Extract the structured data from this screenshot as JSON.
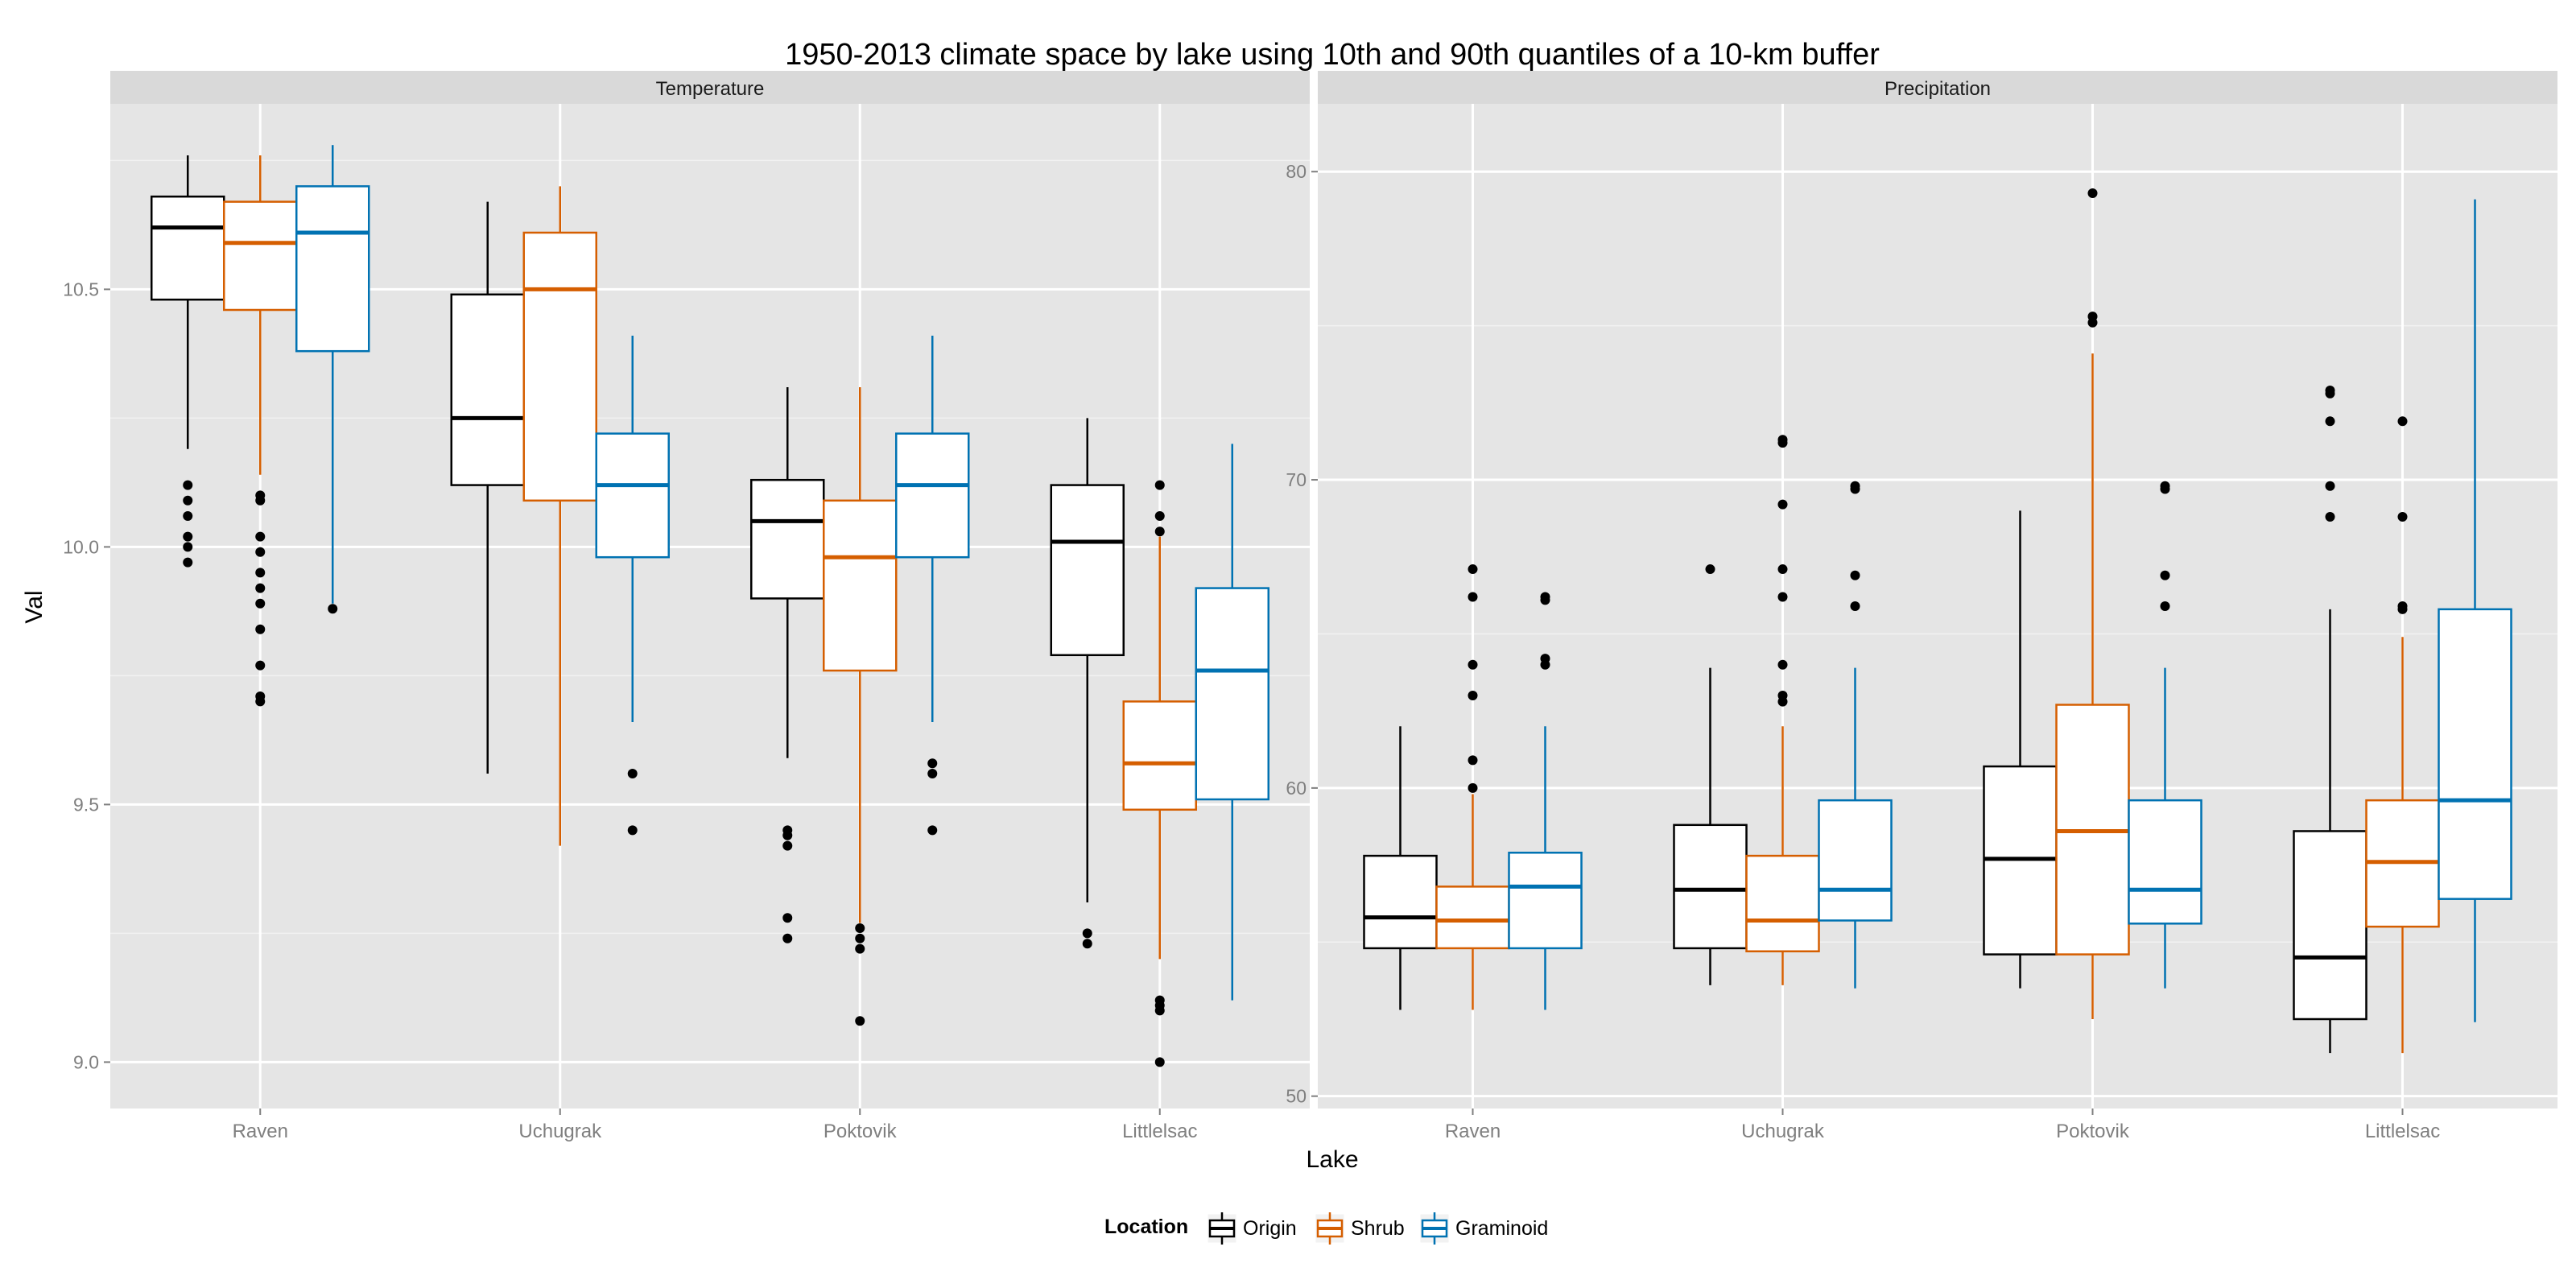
{
  "chart_data": {
    "type": "box",
    "title": "1950-2013 climate space by lake using 10th and 90th quantiles of a 10-km buffer",
    "xlabel": "Lake",
    "ylabel": "Val",
    "categories": [
      "Raven",
      "Uchugrak",
      "Poktovik",
      "Littlelsac"
    ],
    "legend": {
      "title": "Location",
      "position": "bottom",
      "entries": [
        {
          "name": "Origin",
          "color": "#000000"
        },
        {
          "name": "Shrub",
          "color": "#d55e00"
        },
        {
          "name": "Graminoid",
          "color": "#0072b2"
        }
      ]
    },
    "grid": true,
    "panels": [
      {
        "strip_label": "Temperature",
        "ylim": [
          8.91,
          10.86
        ],
        "yticks": [
          9.0,
          9.5,
          10.0,
          10.5
        ],
        "ytick_labels": [
          "9.0",
          "9.5",
          "10.0",
          "10.5"
        ],
        "boxes": [
          {
            "category": "Raven",
            "location": "Origin",
            "whisker_low": 10.19,
            "q1": 10.48,
            "median": 10.62,
            "q3": 10.68,
            "whisker_high": 10.76,
            "outliers": [
              10.12,
              10.09,
              10.06,
              10.02,
              10.0,
              9.97
            ]
          },
          {
            "category": "Raven",
            "location": "Shrub",
            "whisker_low": 10.14,
            "q1": 10.46,
            "median": 10.59,
            "q3": 10.67,
            "whisker_high": 10.76,
            "outliers": [
              10.1,
              10.09,
              10.02,
              9.99,
              9.95,
              9.92,
              9.89,
              9.84,
              9.77,
              9.71,
              9.7
            ]
          },
          {
            "category": "Raven",
            "location": "Graminoid",
            "whisker_low": 9.89,
            "q1": 10.38,
            "median": 10.61,
            "q3": 10.7,
            "whisker_high": 10.78,
            "outliers": [
              9.88
            ]
          },
          {
            "category": "Uchugrak",
            "location": "Origin",
            "whisker_low": 9.56,
            "q1": 10.12,
            "median": 10.25,
            "q3": 10.49,
            "whisker_high": 10.67,
            "outliers": []
          },
          {
            "category": "Uchugrak",
            "location": "Shrub",
            "whisker_low": 9.42,
            "q1": 10.09,
            "median": 10.5,
            "q3": 10.61,
            "whisker_high": 10.7,
            "outliers": []
          },
          {
            "category": "Uchugrak",
            "location": "Graminoid",
            "whisker_low": 9.66,
            "q1": 9.98,
            "median": 10.12,
            "q3": 10.22,
            "whisker_high": 10.41,
            "outliers": [
              9.56,
              9.45
            ]
          },
          {
            "category": "Poktovik",
            "location": "Origin",
            "whisker_low": 9.59,
            "q1": 9.9,
            "median": 10.05,
            "q3": 10.13,
            "whisker_high": 10.31,
            "outliers": [
              9.45,
              9.44,
              9.42,
              9.28,
              9.24
            ]
          },
          {
            "category": "Poktovik",
            "location": "Shrub",
            "whisker_low": 9.27,
            "q1": 9.76,
            "median": 9.98,
            "q3": 10.09,
            "whisker_high": 10.31,
            "outliers": [
              9.26,
              9.24,
              9.22,
              9.08
            ]
          },
          {
            "category": "Poktovik",
            "location": "Graminoid",
            "whisker_low": 9.66,
            "q1": 9.98,
            "median": 10.12,
            "q3": 10.22,
            "whisker_high": 10.41,
            "outliers": [
              9.58,
              9.56,
              9.45
            ]
          },
          {
            "category": "Littlelsac",
            "location": "Origin",
            "whisker_low": 9.31,
            "q1": 9.79,
            "median": 10.01,
            "q3": 10.12,
            "whisker_high": 10.25,
            "outliers": [
              9.25,
              9.23
            ]
          },
          {
            "category": "Littlelsac",
            "location": "Shrub",
            "whisker_low": 9.2,
            "q1": 9.49,
            "median": 9.58,
            "q3": 9.7,
            "whisker_high": 10.02,
            "outliers": [
              10.12,
              10.06,
              10.03,
              9.12,
              9.11,
              9.1,
              9.0
            ]
          },
          {
            "category": "Littlelsac",
            "location": "Graminoid",
            "whisker_low": 9.12,
            "q1": 9.51,
            "median": 9.76,
            "q3": 9.92,
            "whisker_high": 10.2,
            "outliers": []
          }
        ]
      },
      {
        "strip_label": "Precipitation",
        "ylim": [
          49.6,
          82.2
        ],
        "yticks": [
          50,
          60,
          70,
          80
        ],
        "ytick_labels": [
          "50",
          "60",
          "70",
          "80"
        ],
        "boxes": [
          {
            "category": "Raven",
            "location": "Origin",
            "whisker_low": 52.8,
            "q1": 54.8,
            "median": 55.8,
            "q3": 57.8,
            "whisker_high": 62.0,
            "outliers": []
          },
          {
            "category": "Raven",
            "location": "Shrub",
            "whisker_low": 52.8,
            "q1": 54.8,
            "median": 55.7,
            "q3": 56.8,
            "whisker_high": 59.8,
            "outliers": [
              67.1,
              66.2,
              64.0,
              63.0,
              60.9,
              60.0
            ]
          },
          {
            "category": "Raven",
            "location": "Graminoid",
            "whisker_low": 52.8,
            "q1": 54.8,
            "median": 56.8,
            "q3": 57.9,
            "whisker_high": 62.0,
            "outliers": [
              66.2,
              66.1,
              64.2,
              64.0
            ]
          },
          {
            "category": "Uchugrak",
            "location": "Origin",
            "whisker_low": 53.6,
            "q1": 54.8,
            "median": 56.7,
            "q3": 58.8,
            "whisker_high": 63.9,
            "outliers": [
              67.1
            ]
          },
          {
            "category": "Uchugrak",
            "location": "Shrub",
            "whisker_low": 53.6,
            "q1": 54.7,
            "median": 55.7,
            "q3": 57.8,
            "whisker_high": 62.0,
            "outliers": [
              71.3,
              71.2,
              69.2,
              67.1,
              66.2,
              64.0,
              63.0,
              62.8
            ]
          },
          {
            "category": "Uchugrak",
            "location": "Graminoid",
            "whisker_low": 53.5,
            "q1": 55.7,
            "median": 56.7,
            "q3": 59.6,
            "whisker_high": 63.9,
            "outliers": [
              69.8,
              69.7,
              66.9,
              65.9
            ]
          },
          {
            "category": "Poktovik",
            "location": "Origin",
            "whisker_low": 53.5,
            "q1": 54.6,
            "median": 57.7,
            "q3": 60.7,
            "whisker_high": 69.0,
            "outliers": []
          },
          {
            "category": "Poktovik",
            "location": "Shrub",
            "whisker_low": 52.5,
            "q1": 54.6,
            "median": 58.6,
            "q3": 62.7,
            "whisker_high": 74.1,
            "outliers": [
              79.3,
              75.3,
              75.1
            ]
          },
          {
            "category": "Poktovik",
            "location": "Graminoid",
            "whisker_low": 53.5,
            "q1": 55.6,
            "median": 56.7,
            "q3": 59.6,
            "whisker_high": 63.9,
            "outliers": [
              69.8,
              69.7,
              66.9,
              65.9
            ]
          },
          {
            "category": "Littlelsac",
            "location": "Origin",
            "whisker_low": 51.4,
            "q1": 52.5,
            "median": 54.5,
            "q3": 58.6,
            "whisker_high": 65.8,
            "outliers": [
              72.9,
              72.8,
              71.9,
              69.8,
              68.8
            ]
          },
          {
            "category": "Littlelsac",
            "location": "Shrub",
            "whisker_low": 51.4,
            "q1": 55.5,
            "median": 57.6,
            "q3": 59.6,
            "whisker_high": 64.9,
            "outliers": [
              71.9,
              68.8,
              65.9,
              65.8
            ]
          },
          {
            "category": "Littlelsac",
            "location": "Graminoid",
            "whisker_low": 52.4,
            "q1": 56.4,
            "median": 59.6,
            "q3": 65.8,
            "whisker_high": 79.1,
            "outliers": []
          }
        ]
      }
    ]
  }
}
